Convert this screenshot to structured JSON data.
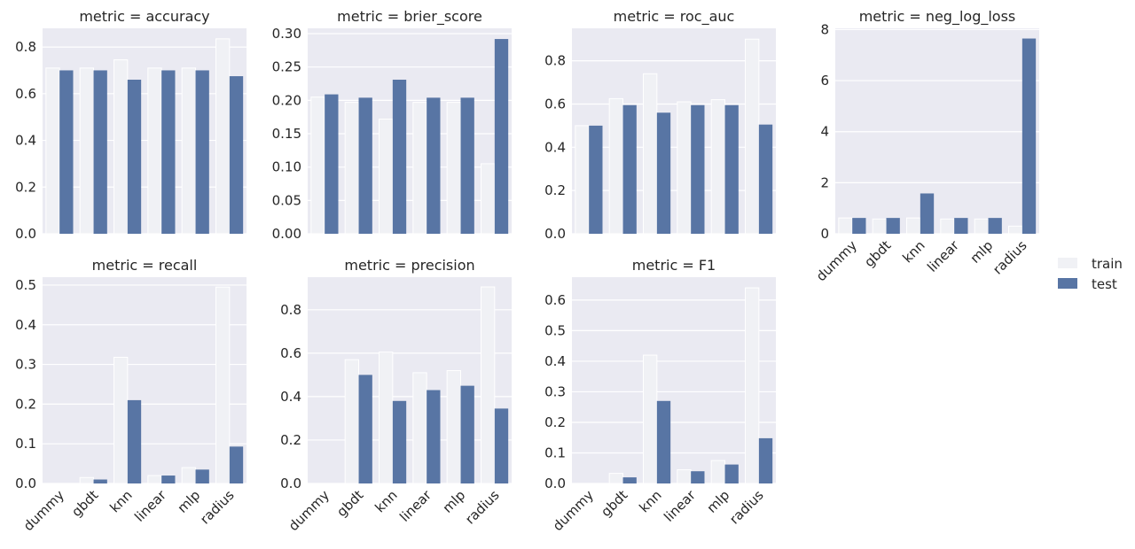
{
  "chart_data": {
    "type": "bar",
    "layout": "facet-grid",
    "categories": [
      "dummy",
      "gbdt",
      "knn",
      "linear",
      "mlp",
      "radius"
    ],
    "hue_labels": [
      "train",
      "test"
    ],
    "colors": {
      "train": "#f0f1f5",
      "test": "#5875a4",
      "panel_bg": "#eaeaf2",
      "grid": "#ffffff",
      "text": "#262626"
    },
    "legend": {
      "position": "right",
      "entries": [
        {
          "name": "train",
          "color": "#f0f1f5"
        },
        {
          "name": "test",
          "color": "#5875a4"
        }
      ]
    },
    "panels": [
      {
        "title": "metric = accuracy",
        "ylim": [
          0,
          0.88
        ],
        "yticks": [
          "0.0",
          "0.2",
          "0.4",
          "0.6",
          "0.8"
        ],
        "ytick_values": [
          0,
          0.2,
          0.4,
          0.6,
          0.8
        ],
        "series": [
          {
            "name": "train",
            "values": [
              0.71,
              0.71,
              0.745,
              0.71,
              0.71,
              0.835
            ]
          },
          {
            "name": "test",
            "values": [
              0.7,
              0.7,
              0.66,
              0.7,
              0.7,
              0.675
            ]
          }
        ]
      },
      {
        "title": "metric = brier_score",
        "ylim": [
          0,
          0.308
        ],
        "yticks": [
          "0.00",
          "0.05",
          "0.10",
          "0.15",
          "0.20",
          "0.25",
          "0.30"
        ],
        "ytick_values": [
          0,
          0.05,
          0.1,
          0.15,
          0.2,
          0.25,
          0.3
        ],
        "series": [
          {
            "name": "train",
            "values": [
              0.205,
              0.197,
              0.172,
              0.197,
              0.197,
              0.105
            ]
          },
          {
            "name": "test",
            "values": [
              0.209,
              0.204,
              0.231,
              0.204,
              0.204,
              0.292
            ]
          }
        ]
      },
      {
        "title": "metric = roc_auc",
        "ylim": [
          0,
          0.95
        ],
        "yticks": [
          "0.0",
          "0.2",
          "0.4",
          "0.6",
          "0.8"
        ],
        "ytick_values": [
          0,
          0.2,
          0.4,
          0.6,
          0.8
        ],
        "series": [
          {
            "name": "train",
            "values": [
              0.5,
              0.625,
              0.74,
              0.61,
              0.62,
              0.9
            ]
          },
          {
            "name": "test",
            "values": [
              0.5,
              0.595,
              0.56,
              0.595,
              0.595,
              0.505
            ]
          }
        ]
      },
      {
        "title": "metric = neg_log_loss",
        "ylim": [
          0,
          8.05
        ],
        "yticks": [
          "0",
          "2",
          "4",
          "6",
          "8"
        ],
        "ytick_values": [
          0,
          2,
          4,
          6,
          8
        ],
        "series": [
          {
            "name": "train",
            "values": [
              0.62,
              0.58,
              0.62,
              0.58,
              0.58,
              0.3
            ]
          },
          {
            "name": "test",
            "values": [
              0.62,
              0.62,
              1.58,
              0.62,
              0.62,
              7.65
            ]
          }
        ]
      },
      {
        "title": "metric = recall",
        "ylim": [
          0,
          0.52
        ],
        "yticks": [
          "0.0",
          "0.1",
          "0.2",
          "0.3",
          "0.4",
          "0.5"
        ],
        "ytick_values": [
          0,
          0.1,
          0.2,
          0.3,
          0.4,
          0.5
        ],
        "series": [
          {
            "name": "train",
            "values": [
              0.0,
              0.015,
              0.318,
              0.02,
              0.04,
              0.495
            ]
          },
          {
            "name": "test",
            "values": [
              0.0,
              0.01,
              0.21,
              0.02,
              0.035,
              0.093
            ]
          }
        ]
      },
      {
        "title": "metric = precision",
        "ylim": [
          0,
          0.95
        ],
        "yticks": [
          "0.0",
          "0.2",
          "0.4",
          "0.6",
          "0.8"
        ],
        "ytick_values": [
          0,
          0.2,
          0.4,
          0.6,
          0.8
        ],
        "series": [
          {
            "name": "train",
            "values": [
              0.0,
              0.57,
              0.605,
              0.51,
              0.52,
              0.905
            ]
          },
          {
            "name": "test",
            "values": [
              0.0,
              0.5,
              0.38,
              0.43,
              0.45,
              0.345
            ]
          }
        ]
      },
      {
        "title": "metric = F1",
        "ylim": [
          0,
          0.675
        ],
        "yticks": [
          "0.0",
          "0.1",
          "0.2",
          "0.3",
          "0.4",
          "0.5",
          "0.6"
        ],
        "ytick_values": [
          0,
          0.1,
          0.2,
          0.3,
          0.4,
          0.5,
          0.6
        ],
        "series": [
          {
            "name": "train",
            "values": [
              0.0,
              0.033,
              0.42,
              0.045,
              0.075,
              0.64
            ]
          },
          {
            "name": "test",
            "values": [
              0.0,
              0.02,
              0.27,
              0.04,
              0.062,
              0.148
            ]
          }
        ]
      }
    ]
  }
}
